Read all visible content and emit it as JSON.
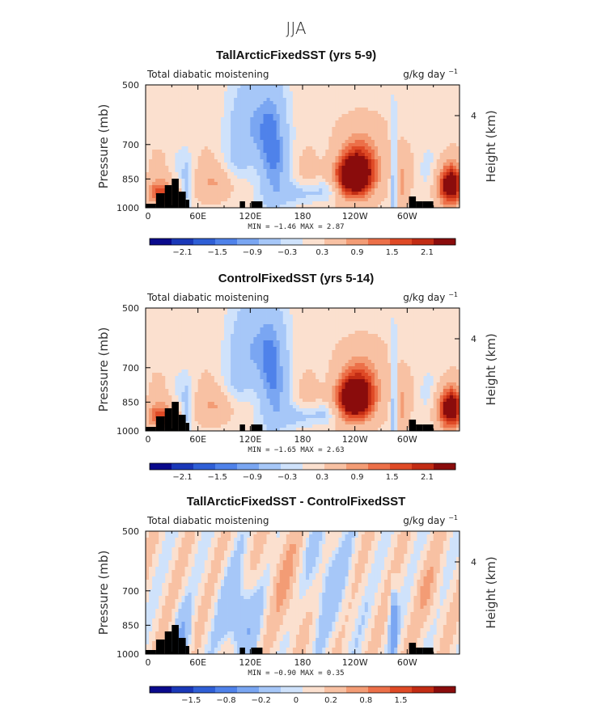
{
  "figure": {
    "title": "JJA"
  },
  "chart_data": [
    {
      "type": "heatmap",
      "title": "TallArcticFixedSST (yrs 5-9)",
      "field_label": "Total diabatic moistening",
      "units": "g/kg day",
      "units_exponent": "−1",
      "ylabel": "Pressure (mb)",
      "ylabel_right": "Height (km)",
      "x_ticks": [
        "0",
        "60E",
        "120E",
        "180",
        "120W",
        "60W"
      ],
      "y_ticks": [
        "500",
        "700",
        "850",
        "1000"
      ],
      "y_right_ticks": [
        "4"
      ],
      "min_label": "MIN =",
      "min_value": "−1.46",
      "max_label": "MAX =",
      "max_value": "2.87",
      "colorbar_labels": [
        "−2.1",
        "−1.5",
        "−0.9",
        "−0.3",
        "0.3",
        "0.9",
        "1.5",
        "2.1"
      ],
      "colorbar_colors": [
        "#0a0a8c",
        "#1a38b8",
        "#2f5fd6",
        "#4f82ea",
        "#7aa6f2",
        "#a6c7f8",
        "#cfe2fb",
        "#fbe0cf",
        "#f8c1a3",
        "#f39c75",
        "#ec7049",
        "#df4a26",
        "#c22c14",
        "#8a0c0c"
      ]
    },
    {
      "type": "heatmap",
      "title": "ControlFixedSST (yrs 5-14)",
      "field_label": "Total diabatic moistening",
      "units": "g/kg day",
      "units_exponent": "−1",
      "ylabel": "Pressure (mb)",
      "ylabel_right": "Height (km)",
      "x_ticks": [
        "0",
        "60E",
        "120E",
        "180",
        "120W",
        "60W"
      ],
      "y_ticks": [
        "500",
        "700",
        "850",
        "1000"
      ],
      "y_right_ticks": [
        "4"
      ],
      "min_label": "MIN =",
      "min_value": "−1.65",
      "max_label": "MAX =",
      "max_value": "2.63",
      "colorbar_labels": [
        "−2.1",
        "−1.5",
        "−0.9",
        "−0.3",
        "0.3",
        "0.9",
        "1.5",
        "2.1"
      ],
      "colorbar_colors": [
        "#0a0a8c",
        "#1a38b8",
        "#2f5fd6",
        "#4f82ea",
        "#7aa6f2",
        "#a6c7f8",
        "#cfe2fb",
        "#fbe0cf",
        "#f8c1a3",
        "#f39c75",
        "#ec7049",
        "#df4a26",
        "#c22c14",
        "#8a0c0c"
      ]
    },
    {
      "type": "heatmap",
      "title": "TallArcticFixedSST - ControlFixedSST",
      "field_label": "Total diabatic moistening",
      "units": "g/kg day",
      "units_exponent": "−1",
      "ylabel": "Pressure (mb)",
      "ylabel_right": "Height (km)",
      "x_ticks": [
        "0",
        "60E",
        "120E",
        "180",
        "120W",
        "60W"
      ],
      "y_ticks": [
        "500",
        "700",
        "850",
        "1000"
      ],
      "y_right_ticks": [
        "4"
      ],
      "min_label": "MIN =",
      "min_value": "−0.90",
      "max_label": "MAX =",
      "max_value": "0.35",
      "colorbar_labels": [
        "−1.5",
        "−0.8",
        "−0.2",
        "0",
        "0.2",
        "0.8",
        "1.5"
      ],
      "colorbar_colors": [
        "#0a0a8c",
        "#1a38b8",
        "#2f5fd6",
        "#4f82ea",
        "#7aa6f2",
        "#a6c7f8",
        "#cfe2fb",
        "#fbe0cf",
        "#f8c1a3",
        "#f39c75",
        "#ec7049",
        "#df4a26",
        "#c22c14",
        "#8a0c0c"
      ]
    }
  ]
}
